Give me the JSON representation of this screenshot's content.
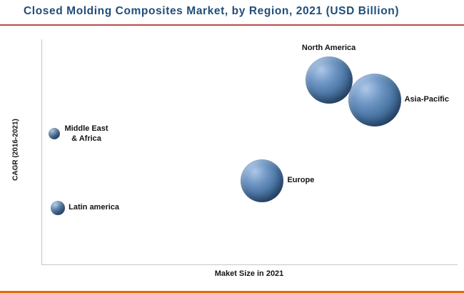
{
  "title": "Closed Molding Composites Market, by Region, 2021 (USD Billion)",
  "colors": {
    "title_text": "#1F4E79",
    "title_underline": "#BE4B48",
    "bottom_accent": "#E36C09",
    "bubble_main": "#4472A8",
    "axis_line": "#C6C6C6"
  },
  "chart_data": {
    "type": "scatter",
    "title": "Closed Molding Composites Market, by Region, 2021 (USD Billion)",
    "xlabel": "Maket Size in 2021",
    "ylabel": "CAGR (2016-2021)",
    "x_range": [
      0,
      100
    ],
    "y_range": [
      0,
      100
    ],
    "grid": false,
    "legend": "none",
    "note": "Axes have no numeric tick labels; x and y are relative positions (0-100) read from the plot, size is bubble radius in px proportional to market size.",
    "points": [
      {
        "label": "North America",
        "x": 69,
        "y": 82,
        "size": 33,
        "label_position": "top"
      },
      {
        "label": "Asia-Pacific",
        "x": 80,
        "y": 73,
        "size": 37,
        "label_position": "right"
      },
      {
        "label": "Europe",
        "x": 53,
        "y": 37,
        "size": 30,
        "label_position": "right"
      },
      {
        "label": "Middle East\n& Africa",
        "x": 3,
        "y": 58,
        "size": 8,
        "label_position": "right-middle"
      },
      {
        "label": "Latin america",
        "x": 3.8,
        "y": 25,
        "size": 10,
        "label_position": "right"
      }
    ]
  }
}
